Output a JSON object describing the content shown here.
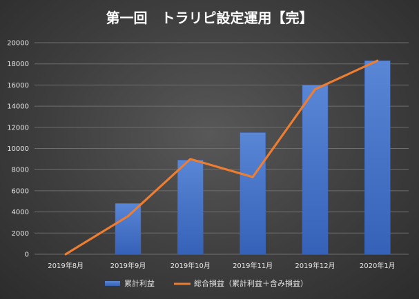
{
  "chart_data": {
    "type": "bar",
    "title": "第一回　トラリピ設定運用【完】",
    "categories": [
      "2019年8月",
      "2019年9月",
      "2019年10月",
      "2019年11月",
      "2019年12月",
      "2020年1月"
    ],
    "series": [
      {
        "name": "累計利益",
        "type": "bar",
        "values": [
          0,
          4800,
          8900,
          11500,
          16000,
          18300
        ]
      },
      {
        "name": "総合損益（累計利益＋含み損益）",
        "type": "line",
        "values": [
          0,
          3600,
          9000,
          7300,
          15600,
          18300
        ]
      }
    ],
    "ylim": [
      0,
      20000
    ],
    "yticks": [
      0,
      2000,
      4000,
      6000,
      8000,
      10000,
      12000,
      14000,
      16000,
      18000,
      20000
    ],
    "grid": true,
    "legend": "bottom",
    "colors": {
      "bar": "#4472c4",
      "line": "#ed7d31"
    }
  }
}
